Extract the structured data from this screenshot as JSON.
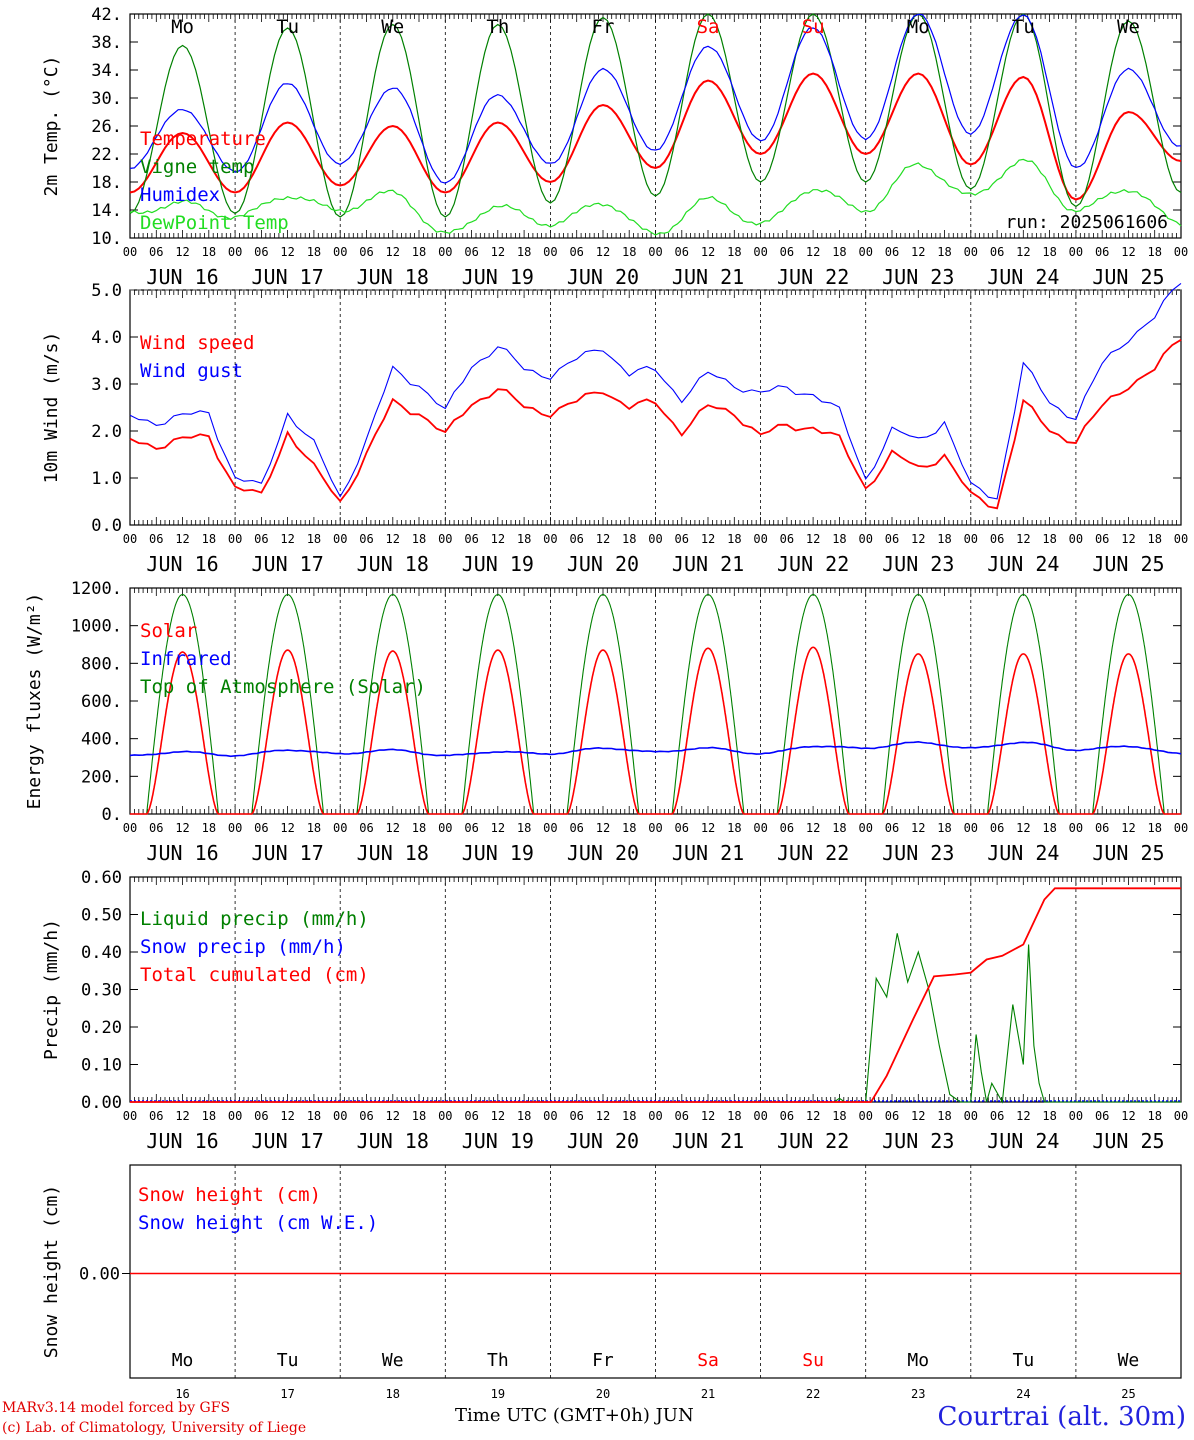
{
  "colors": {
    "red": "#ff0000",
    "blue": "#0000ff",
    "green": "#008000",
    "lightgreen": "#22dd22",
    "weekend": "#ff0000"
  },
  "day_labels": [
    "JUN 16",
    "JUN 17",
    "JUN 18",
    "JUN 19",
    "JUN 20",
    "JUN 21",
    "JUN 22",
    "JUN 23",
    "JUN 24",
    "JUN 25"
  ],
  "hour_labels": [
    "00",
    "06",
    "12",
    "18"
  ],
  "end_hour_label": "00",
  "weekdays": [
    "Mo",
    "Tu",
    "We",
    "Th",
    "Fr",
    "Sa",
    "Su",
    "Mo",
    "Tu",
    "We"
  ],
  "weekend_flags": [
    false,
    false,
    false,
    false,
    false,
    true,
    true,
    false,
    false,
    false
  ],
  "bottom_day_numbers": [
    "16",
    "17",
    "18",
    "19",
    "20",
    "21",
    "22",
    "23",
    "24",
    "25"
  ],
  "footer": {
    "credit_line1": "MARv3.14 model forced by GFS",
    "credit_line2": "(c) Lab. of Climatology, University of Liege",
    "xaxis_title": "Time UTC (GMT+0h) JUN",
    "station": "Courtrai (alt. 30m)"
  },
  "chart_data": [
    {
      "type": "line",
      "ylabel": "2m Temp. (°C)",
      "ylim": [
        10,
        42
      ],
      "yticks": [
        "10.",
        "14.",
        "18.",
        "22.",
        "26.",
        "30.",
        "34.",
        "38.",
        "42."
      ],
      "annotation": "run: 2025061606",
      "x_days": [
        0,
        0.5,
        1,
        1.5,
        2,
        2.5,
        3,
        3.5,
        4,
        4.5,
        5,
        5.5,
        6,
        6.5,
        7,
        7.5,
        8,
        8.5,
        9,
        9.5,
        10
      ],
      "series": [
        {
          "name": "Temperature",
          "color": "red",
          "values": [
            16.5,
            25.0,
            16.5,
            26.5,
            17.5,
            26.0,
            16.5,
            26.5,
            18.0,
            29.0,
            20.0,
            32.5,
            22.0,
            33.5,
            22.0,
            33.5,
            20.5,
            33.0,
            15.5,
            28.0,
            21.0
          ]
        },
        {
          "name": "Vigne temp",
          "color": "green",
          "values": [
            13.5,
            37.5,
            13.5,
            40.0,
            13.0,
            40.5,
            13.0,
            40.5,
            15.0,
            41.5,
            16.0,
            42.0,
            18.0,
            42.0,
            18.0,
            42.0,
            17.0,
            42.0,
            14.5,
            41.0,
            16.5
          ]
        },
        {
          "name": "Humidex",
          "color": "blue",
          "values": [
            20.0,
            28.5,
            19.5,
            32.0,
            20.5,
            31.5,
            18.0,
            30.5,
            20.5,
            34.0,
            22.5,
            37.5,
            24.0,
            40.0,
            24.0,
            42.0,
            25.0,
            42.0,
            20.0,
            34.0,
            23.0
          ]
        },
        {
          "name": "DewPoint Temp",
          "color": "lightgreen",
          "values": [
            13.5,
            15.0,
            13.0,
            16.0,
            14.0,
            16.5,
            10.5,
            14.5,
            12.0,
            15.0,
            10.5,
            15.5,
            12.0,
            17.0,
            14.0,
            20.5,
            16.0,
            21.0,
            14.0,
            17.0,
            12.0
          ]
        }
      ]
    },
    {
      "type": "line",
      "ylabel": "10m Wind (m/s)",
      "ylim": [
        0,
        5
      ],
      "yticks": [
        "0.0",
        "1.0",
        "2.0",
        "3.0",
        "4.0",
        "5.0"
      ],
      "x_days": [
        0,
        0.25,
        0.5,
        0.75,
        1,
        1.25,
        1.5,
        1.75,
        2,
        2.25,
        2.5,
        2.75,
        3,
        3.25,
        3.5,
        3.75,
        4,
        4.25,
        4.5,
        4.75,
        5,
        5.25,
        5.5,
        5.75,
        6,
        6.25,
        6.5,
        6.75,
        7,
        7.25,
        7.5,
        7.75,
        8,
        8.25,
        8.5,
        8.75,
        9,
        9.25,
        9.5,
        9.75,
        10
      ],
      "series": [
        {
          "name": "Wind speed",
          "color": "red",
          "values": [
            1.8,
            1.7,
            1.8,
            1.9,
            0.8,
            0.6,
            2.0,
            1.2,
            0.5,
            1.5,
            2.6,
            2.4,
            1.9,
            2.6,
            2.9,
            2.5,
            2.4,
            2.6,
            2.9,
            2.5,
            2.6,
            2.0,
            2.5,
            2.4,
            1.9,
            2.1,
            2.1,
            1.8,
            0.8,
            1.5,
            1.2,
            1.5,
            0.6,
            0.4,
            2.6,
            2.0,
            1.8,
            2.5,
            3.0,
            3.3,
            4.0
          ]
        },
        {
          "name": "Wind gust",
          "color": "blue",
          "values": [
            2.3,
            2.2,
            2.3,
            2.4,
            1.0,
            0.8,
            2.4,
            1.7,
            0.6,
            1.8,
            3.3,
            3.0,
            2.4,
            3.4,
            3.8,
            3.3,
            3.2,
            3.5,
            3.8,
            3.2,
            3.3,
            2.7,
            3.2,
            3.0,
            2.8,
            2.9,
            2.8,
            2.4,
            1.0,
            2.0,
            1.8,
            2.2,
            0.8,
            0.6,
            3.4,
            2.6,
            2.3,
            3.4,
            4.0,
            4.4,
            5.2
          ]
        }
      ]
    },
    {
      "type": "line",
      "ylabel": "Energy fluxes (W/m²)",
      "ylim": [
        0,
        1200
      ],
      "yticks": [
        "0.",
        "200.",
        "400.",
        "600.",
        "800.",
        "1000.",
        "1200."
      ],
      "solar_peaks": [
        860,
        870,
        865,
        870,
        870,
        880,
        885,
        850,
        850,
        850
      ],
      "toa_peak": 1165,
      "sun_rise_hour": 3.8,
      "sun_set_hour": 20.2,
      "series": [
        {
          "name": "Solar",
          "color": "red"
        },
        {
          "name": "Infrared",
          "color": "blue",
          "x_days": [
            0,
            0.5,
            1,
            1.5,
            2,
            2.5,
            3,
            3.5,
            4,
            4.5,
            5,
            5.5,
            6,
            6.5,
            7,
            7.5,
            8,
            8.5,
            9,
            9.5,
            10
          ],
          "values": [
            310,
            330,
            310,
            340,
            320,
            340,
            310,
            330,
            320,
            350,
            330,
            350,
            320,
            360,
            350,
            380,
            350,
            380,
            340,
            360,
            320
          ]
        },
        {
          "name": "Top of Atmosphere (Solar)",
          "color": "green"
        }
      ]
    },
    {
      "type": "line",
      "ylabel": "Precip (mm/h)",
      "ylim": [
        0,
        0.6
      ],
      "yticks": [
        "0.00",
        "0.10",
        "0.20",
        "0.30",
        "0.40",
        "0.50",
        "0.60"
      ],
      "series": [
        {
          "name": "Liquid precip (mm/h)",
          "color": "green",
          "x_days": [
            0,
            6.7,
            6.75,
            6.8,
            7.0,
            7.1,
            7.2,
            7.3,
            7.4,
            7.5,
            7.6,
            7.7,
            7.8,
            7.9,
            8.0,
            8.05,
            8.1,
            8.15,
            8.2,
            8.3,
            8.4,
            8.5,
            8.55,
            8.6,
            8.65,
            8.7,
            10
          ],
          "values": [
            0,
            0,
            0.01,
            0,
            0,
            0.33,
            0.28,
            0.45,
            0.32,
            0.4,
            0.3,
            0.15,
            0.02,
            0,
            0,
            0.18,
            0.08,
            0,
            0.05,
            0,
            0.26,
            0.1,
            0.42,
            0.15,
            0.05,
            0,
            0
          ]
        },
        {
          "name": "Snow precip (mm/h)",
          "color": "blue",
          "x_days": [
            0,
            10
          ],
          "values": [
            0,
            0
          ]
        },
        {
          "name": "Total cumulated (cm)",
          "color": "red",
          "x_days": [
            0,
            7.05,
            7.2,
            7.45,
            7.65,
            7.85,
            8.0,
            8.15,
            8.3,
            8.5,
            8.7,
            8.8,
            10
          ],
          "values": [
            0,
            0,
            0.07,
            0.22,
            0.335,
            0.34,
            0.345,
            0.38,
            0.39,
            0.42,
            0.54,
            0.57,
            0.57
          ]
        }
      ]
    },
    {
      "type": "line",
      "ylabel": "Snow height (cm)",
      "yticks": [
        "0.00"
      ],
      "series": [
        {
          "name": "Snow height (cm)",
          "color": "red",
          "x_days": [
            0,
            10
          ],
          "values": [
            0,
            0
          ]
        },
        {
          "name": "Snow height (cm W.E.)",
          "color": "blue",
          "x_days": [
            0,
            10
          ],
          "values": [
            0,
            0
          ]
        }
      ]
    }
  ]
}
